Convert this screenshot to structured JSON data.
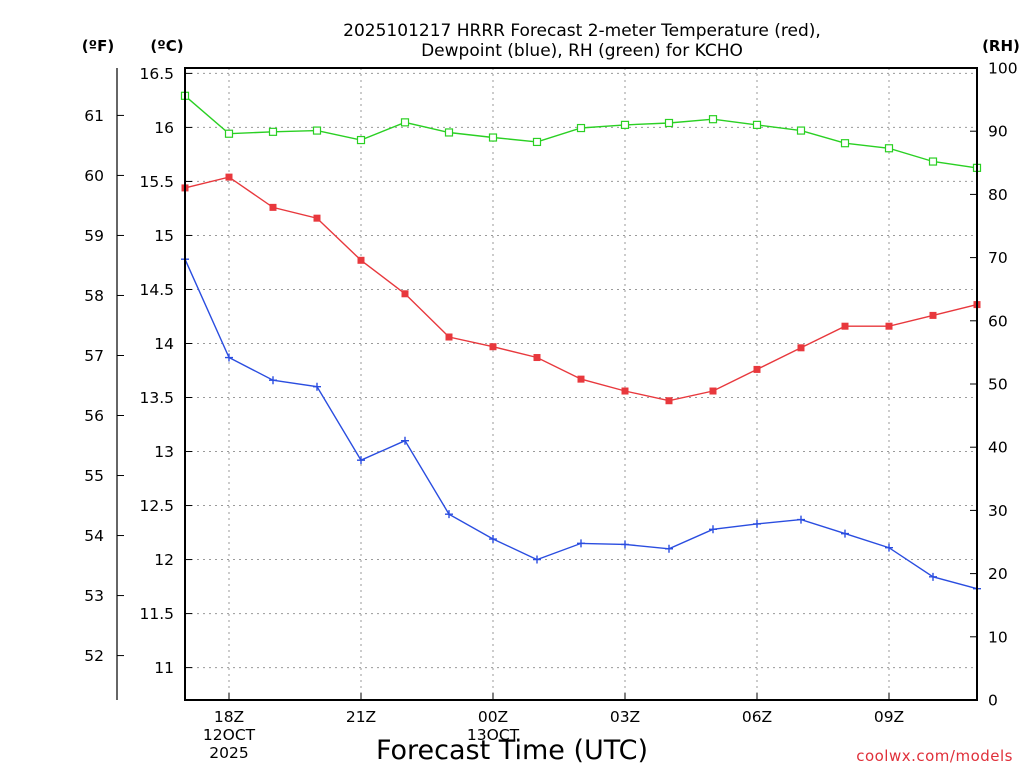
{
  "chart_data": {
    "type": "line",
    "title_lines": [
      "2025101217 HRRR Forecast 2-meter Temperature (red),",
      "Dewpoint (blue), RH (green) for KCHO"
    ],
    "units": {
      "fahrenheit": "(ºF)",
      "celsius": "(ºC)",
      "rh": "(RH)"
    },
    "xlabel": "Forecast Time (UTC)",
    "credit": "coolwx.com/models",
    "x_hours": [
      17,
      18,
      19,
      20,
      21,
      22,
      23,
      24,
      25,
      26,
      27,
      28,
      29,
      30,
      31,
      32,
      33,
      34,
      35
    ],
    "xlim": [
      17,
      35
    ],
    "x_ticks": [
      {
        "hour": 18,
        "lines": [
          "18Z",
          "12OCT",
          "2025"
        ]
      },
      {
        "hour": 21,
        "lines": [
          "21Z"
        ]
      },
      {
        "hour": 24,
        "lines": [
          "00Z",
          "13OCT"
        ]
      },
      {
        "hour": 27,
        "lines": [
          "03Z"
        ]
      },
      {
        "hour": 30,
        "lines": [
          "06Z"
        ]
      },
      {
        "hour": 33,
        "lines": [
          "09Z"
        ]
      }
    ],
    "ylim_celsius": [
      10.7,
      16.55
    ],
    "celsius_ticks": [
      "11",
      "11.5",
      "12",
      "12.5",
      "13",
      "13.5",
      "14",
      "14.5",
      "15",
      "15.5",
      "16",
      "16.5"
    ],
    "fahrenheit_ticks": [
      "52",
      "53",
      "54",
      "55",
      "56",
      "57",
      "58",
      "59",
      "60",
      "61"
    ],
    "ylim_rh": [
      0,
      100
    ],
    "rh_ticks": [
      "0",
      "10",
      "20",
      "30",
      "40",
      "50",
      "60",
      "70",
      "80",
      "90",
      "100"
    ],
    "series": [
      {
        "name": "Temperature",
        "axis": "celsius",
        "color": "#e8383d",
        "marker": "filled-square",
        "values": [
          15.44,
          15.54,
          15.26,
          15.16,
          14.77,
          14.46,
          14.06,
          13.97,
          13.87,
          13.67,
          13.56,
          13.47,
          13.56,
          13.76,
          13.96,
          14.16,
          14.16,
          14.26,
          14.36
        ]
      },
      {
        "name": "Dewpoint",
        "axis": "celsius",
        "color": "#2a4de0",
        "marker": "plus",
        "values": [
          14.78,
          13.87,
          13.66,
          13.6,
          12.92,
          13.1,
          12.42,
          12.19,
          12.0,
          12.15,
          12.14,
          12.1,
          12.28,
          12.33,
          12.37,
          12.24,
          12.11,
          11.84,
          11.73
        ]
      },
      {
        "name": "RH",
        "axis": "rh",
        "color": "#2ad023",
        "marker": "open-square",
        "values": [
          95.6,
          89.6,
          89.9,
          90.1,
          88.6,
          91.4,
          89.8,
          89.0,
          88.3,
          90.5,
          91.0,
          91.3,
          91.9,
          91.0,
          90.1,
          88.1,
          87.3,
          85.2,
          84.2
        ]
      }
    ]
  }
}
